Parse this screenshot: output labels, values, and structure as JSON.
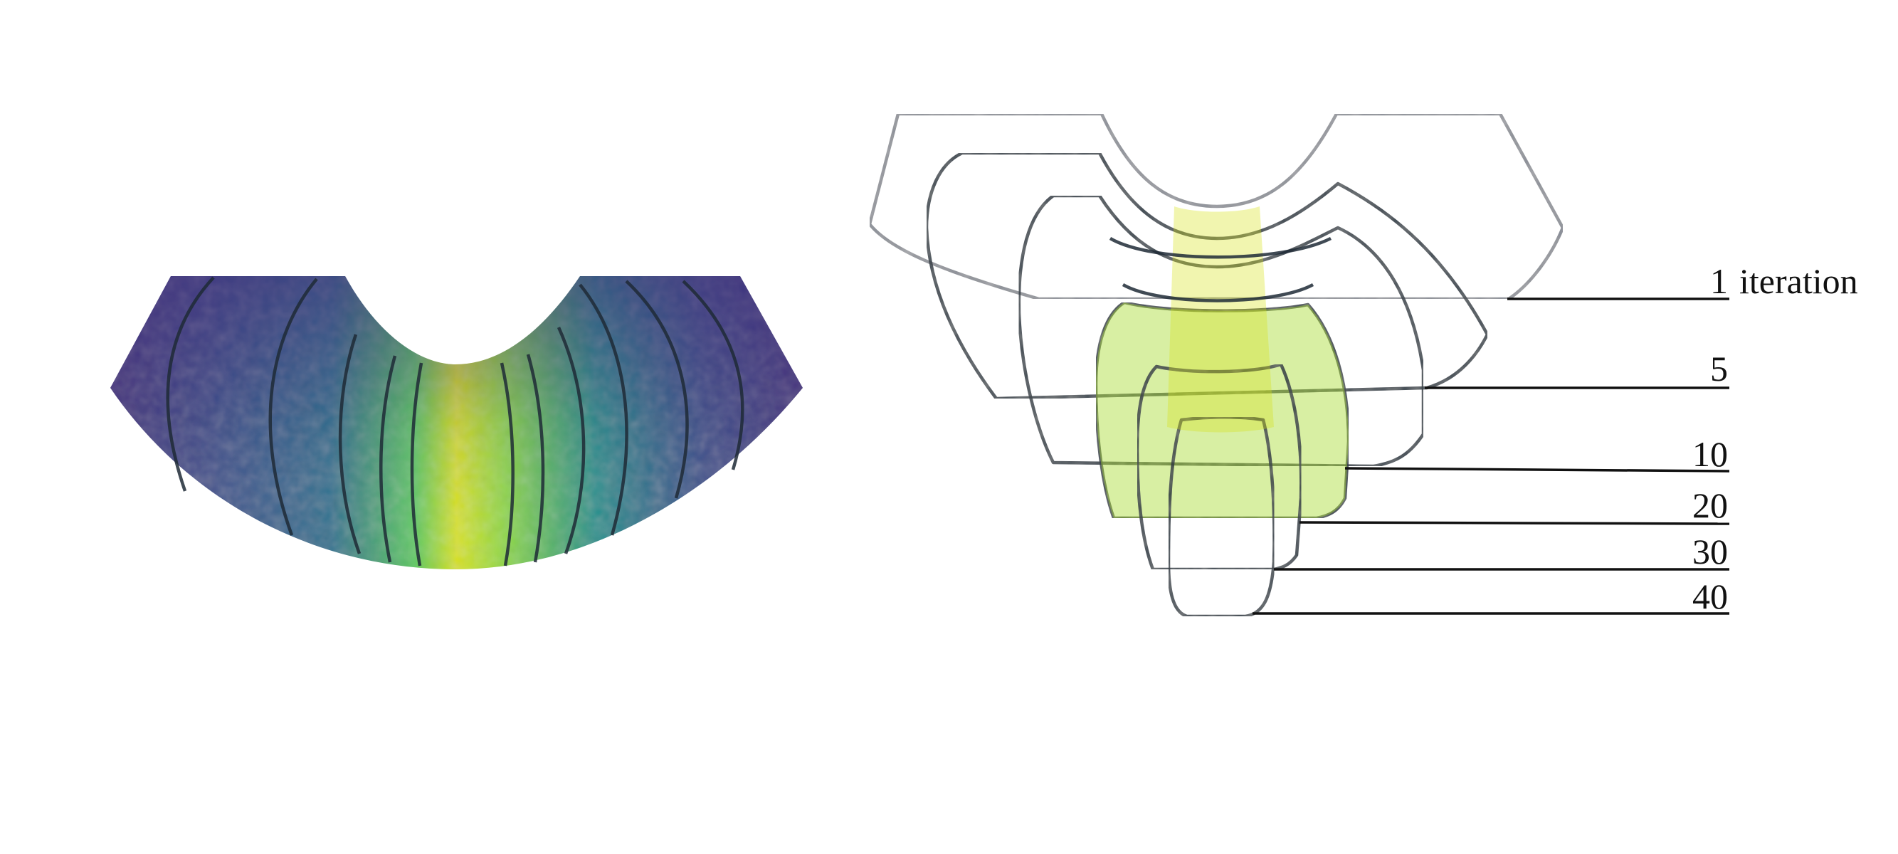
{
  "colors": {
    "viridis_dark": "#3f2a7a",
    "viridis_purple": "#46337f",
    "viridis_blue": "#365c8d",
    "viridis_teal": "#21918c",
    "viridis_green": "#3fbc73",
    "viridis_lime": "#a8db34",
    "viridis_yellow": "#d8e219",
    "edge": "#1f2a36"
  },
  "labels": [
    {
      "id": "iter-1",
      "number": "1",
      "suffix": " iteration"
    },
    {
      "id": "iter-5",
      "number": "5",
      "suffix": ""
    },
    {
      "id": "iter-10",
      "number": "10",
      "suffix": ""
    },
    {
      "id": "iter-20",
      "number": "20",
      "suffix": ""
    },
    {
      "id": "iter-30",
      "number": "30",
      "suffix": ""
    },
    {
      "id": "iter-40",
      "number": "40",
      "suffix": ""
    }
  ]
}
